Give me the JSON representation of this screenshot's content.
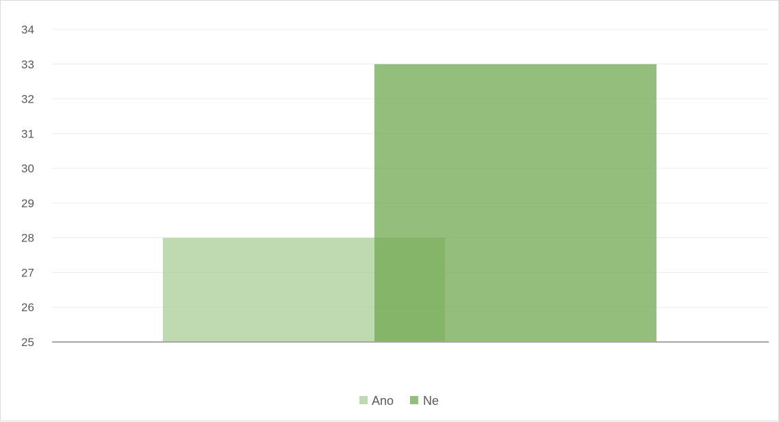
{
  "chart_data": {
    "type": "bar",
    "categories": [
      ""
    ],
    "series": [
      {
        "name": "Ano",
        "values": [
          28
        ],
        "color": "#a9cc95",
        "opacity": 0.75
      },
      {
        "name": "Ne",
        "values": [
          33
        ],
        "color": "#70a850",
        "opacity": 0.75
      }
    ],
    "title": "",
    "xlabel": "",
    "ylabel": "",
    "ylim": [
      25,
      34
    ],
    "yticks": [
      25,
      26,
      27,
      28,
      29,
      30,
      31,
      32,
      33,
      34
    ],
    "grid": true,
    "legend": "bottom",
    "overlap": true
  }
}
